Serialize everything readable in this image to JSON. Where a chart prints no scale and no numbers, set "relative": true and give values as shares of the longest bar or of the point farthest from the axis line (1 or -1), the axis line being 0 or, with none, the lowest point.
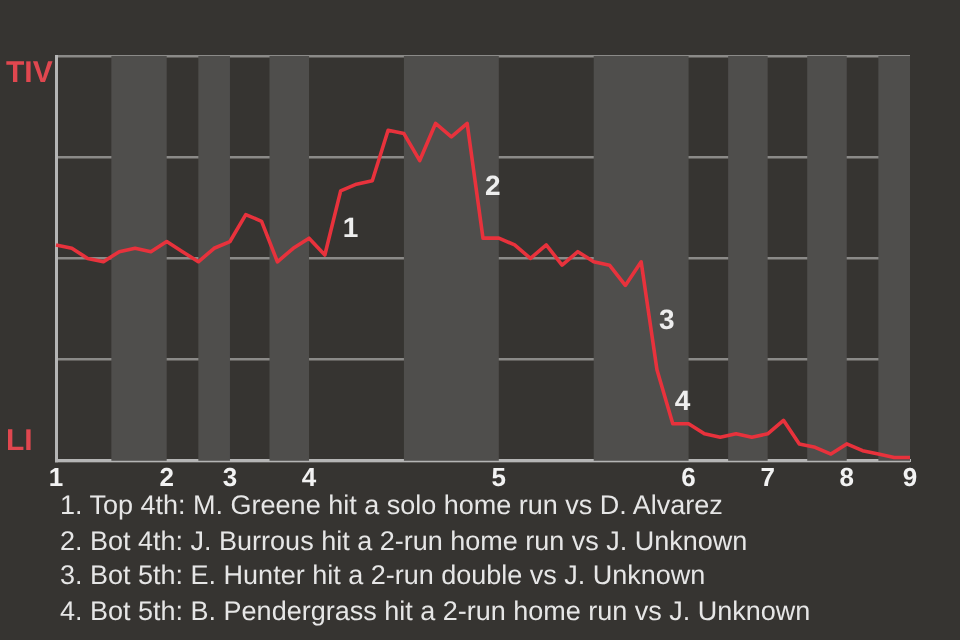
{
  "chart_data": {
    "type": "line",
    "relative": true,
    "grid": "y",
    "legend": false,
    "marker": "none",
    "line_style": "solid",
    "categories": [
      "1",
      null,
      null,
      null,
      null,
      null,
      null,
      "2",
      null,
      null,
      null,
      "3",
      null,
      null,
      null,
      null,
      "4",
      null,
      null,
      null,
      null,
      null,
      null,
      null,
      null,
      null,
      null,
      null,
      "5",
      null,
      null,
      null,
      null,
      null,
      null,
      null,
      null,
      null,
      null,
      null,
      "6",
      null,
      null,
      null,
      null,
      "7",
      null,
      null,
      null,
      null,
      "8",
      null,
      null,
      null,
      "9"
    ],
    "series": [
      {
        "color": "#e8323c",
        "values": [
          0.64,
          0.63,
          0.6,
          0.59,
          0.62,
          0.63,
          0.62,
          0.65,
          0.62,
          0.59,
          0.63,
          0.65,
          0.73,
          0.71,
          0.59,
          0.63,
          0.66,
          0.61,
          0.8,
          0.82,
          0.83,
          0.98,
          0.97,
          0.89,
          1,
          0.96,
          1,
          0.66,
          0.66,
          0.64,
          0.6,
          0.64,
          0.58,
          0.62,
          0.59,
          0.58,
          0.52,
          0.59,
          0.27,
          0.11,
          0.11,
          0.08,
          0.07,
          0.08,
          0.07,
          0.08,
          0.12,
          0.05,
          0.04,
          0.02,
          0.05,
          0.03,
          0.02,
          0.01,
          0.01
        ]
      }
    ],
    "annotations": [
      "TIV",
      "LI",
      "1",
      "2",
      "3",
      "4",
      "1. Top 4th: M. Greene hit a solo home run vs D. Alvarez",
      "2. Bot 4th: J. Burrous hit a 2-run home run vs J. Unknown",
      "3. Bot 5th: E. Hunter hit a 2-run double vs J. Unknown",
      "4. Bot 5th: B. Pendergrass hit a 2-run home run vs J. Unknown"
    ]
  }
}
